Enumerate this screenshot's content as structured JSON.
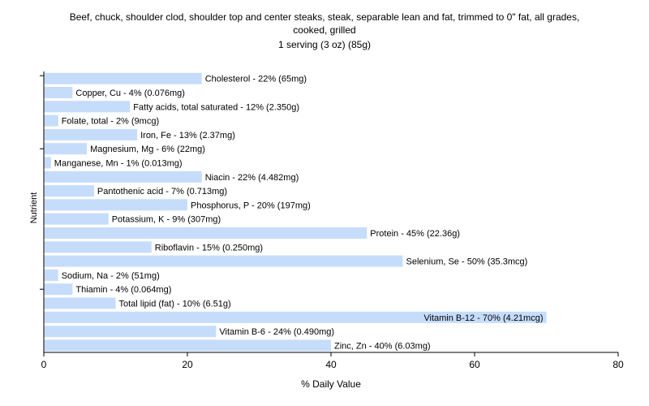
{
  "chart_data": {
    "type": "bar",
    "orientation": "horizontal",
    "title_lines": [
      "Beef, chuck, shoulder clod, shoulder top and center steaks, steak, separable lean and fat, trimmed to 0\" fat, all grades,",
      "cooked, grilled",
      "1 serving (3 oz) (85g)"
    ],
    "xlabel": "% Daily Value",
    "ylabel": "Nutrient",
    "xlim": [
      0,
      80
    ],
    "xticks": [
      0,
      20,
      40,
      60,
      80
    ],
    "bar_color": "#c6dcfb",
    "grid": false,
    "categories": [
      "Cholesterol",
      "Copper, Cu",
      "Fatty acids, total saturated",
      "Folate, total",
      "Iron, Fe",
      "Magnesium, Mg",
      "Manganese, Mn",
      "Niacin",
      "Pantothenic acid",
      "Phosphorus, P",
      "Potassium, K",
      "Protein",
      "Riboflavin",
      "Selenium, Se",
      "Sodium, Na",
      "Thiamin",
      "Total lipid (fat)",
      "Vitamin B-12",
      "Vitamin B-6",
      "Zinc, Zn"
    ],
    "values": [
      22,
      4,
      12,
      2,
      13,
      6,
      1,
      22,
      7,
      20,
      9,
      45,
      15,
      50,
      2,
      4,
      10,
      70,
      24,
      40
    ],
    "labels": [
      "Cholesterol - 22% (65mg)",
      "Copper, Cu - 4% (0.076mg)",
      "Fatty acids, total saturated - 12% (2.350g)",
      "Folate, total - 2% (9mcg)",
      "Iron, Fe - 13% (2.37mg)",
      "Magnesium, Mg - 6% (22mg)",
      "Manganese, Mn - 1% (0.013mg)",
      "Niacin - 22% (4.482mg)",
      "Pantothenic acid - 7% (0.713mg)",
      "Phosphorus, P - 20% (197mg)",
      "Potassium, K - 9% (307mg)",
      "Protein - 45% (22.36g)",
      "Riboflavin - 15% (0.250mg)",
      "Selenium, Se - 50% (35.3mcg)",
      "Sodium, Na - 2% (51mg)",
      "Thiamin - 4% (0.064mg)",
      "Total lipid (fat) - 10% (6.51g)",
      "Vitamin B-12 - 70% (4.21mcg)",
      "Vitamin B-6 - 24% (0.490mg)",
      "Zinc, Zn - 40% (6.03mg)"
    ]
  }
}
